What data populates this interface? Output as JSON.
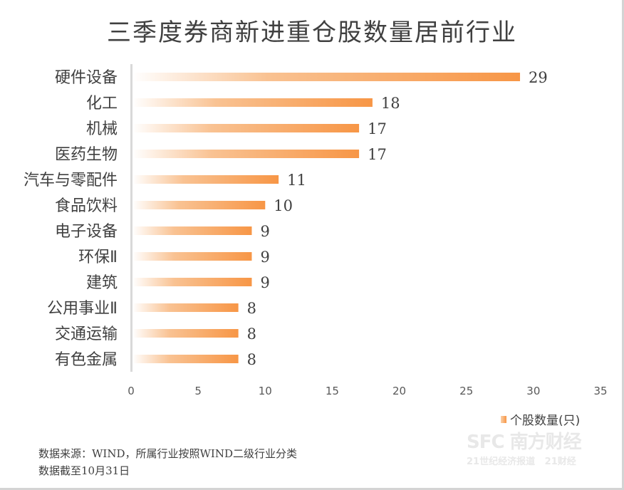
{
  "chart_data": {
    "type": "bar",
    "orientation": "horizontal",
    "title": "三季度券商新进重仓股数量居前行业",
    "categories": [
      "硬件设备",
      "化工",
      "机械",
      "医药生物",
      "汽车与零配件",
      "食品饮料",
      "电子设备",
      "环保Ⅱ",
      "建筑",
      "公用事业Ⅱ",
      "交通运输",
      "有色金属"
    ],
    "series": [
      {
        "name": "个股数量(只)",
        "values": [
          29,
          18,
          17,
          17,
          11,
          10,
          9,
          9,
          9,
          8,
          8,
          8
        ]
      }
    ],
    "xlim": [
      0,
      35
    ],
    "xticks": [
      "0",
      "5",
      "10",
      "15",
      "20",
      "25",
      "30",
      "35"
    ],
    "grid": false,
    "legend_placement": "bottom-right",
    "data_labels": true,
    "colors": {
      "bar_start": "#ffffff",
      "bar_end": "#f79646",
      "axis": "#d9d9d9",
      "text": "#404040"
    }
  },
  "footer": {
    "source_line1": "数据来源：WIND，所属行业按照WIND二级行业分类",
    "source_line2": "数据截至10月31日"
  },
  "watermark": {
    "line1": "SFC 南方财经全媒体集团",
    "line2": "21世纪经济报道 21财经"
  }
}
